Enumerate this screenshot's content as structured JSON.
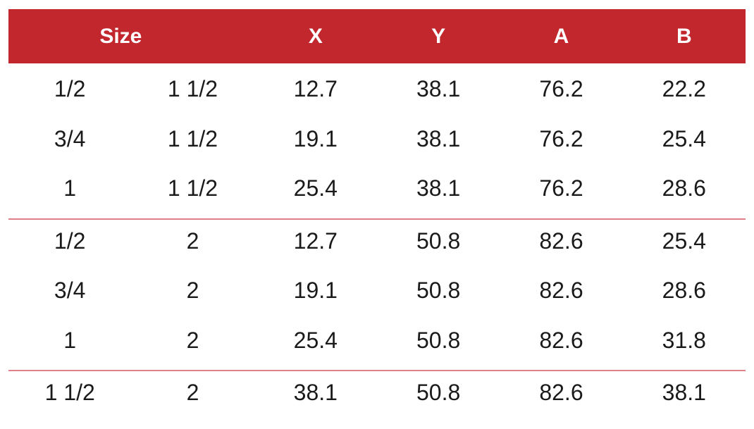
{
  "table": {
    "header": [
      "Size",
      "X",
      "Y",
      "A",
      "B"
    ],
    "groups": [
      [
        [
          "1/2",
          "1 1/2",
          "12.7",
          "38.1",
          "76.2",
          "22.2"
        ],
        [
          "3/4",
          "1 1/2",
          "19.1",
          "38.1",
          "76.2",
          "25.4"
        ],
        [
          "1",
          "1 1/2",
          "25.4",
          "38.1",
          "76.2",
          "28.6"
        ]
      ],
      [
        [
          "1/2",
          "2",
          "12.7",
          "50.8",
          "82.6",
          "25.4"
        ],
        [
          "3/4",
          "2",
          "19.1",
          "50.8",
          "82.6",
          "28.6"
        ],
        [
          "1",
          "2",
          "25.4",
          "50.8",
          "82.6",
          "31.8"
        ]
      ],
      [
        [
          "1 1/2",
          "2",
          "38.1",
          "50.8",
          "82.6",
          "38.1"
        ]
      ]
    ]
  }
}
